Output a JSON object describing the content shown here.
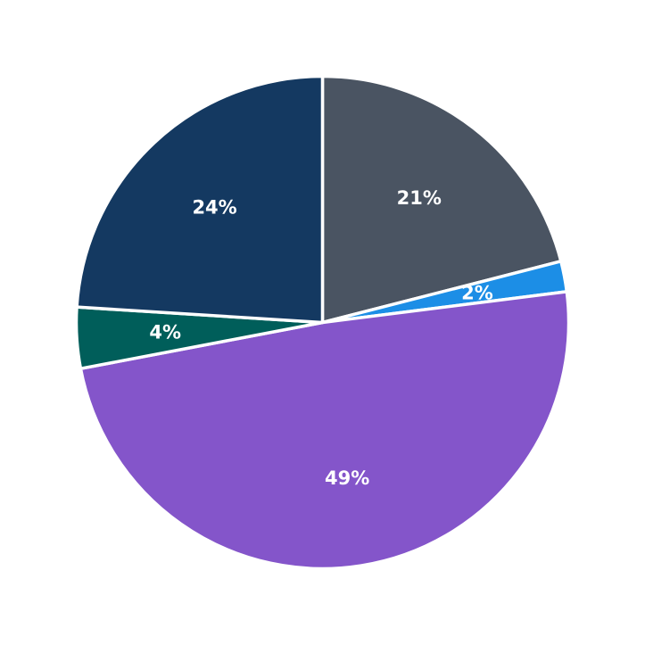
{
  "chart_data": {
    "type": "pie",
    "start": "top",
    "direction": "clockwise",
    "slices": [
      {
        "value": 21,
        "label": "21%",
        "color": "#4a5462"
      },
      {
        "value": 2,
        "label": "2%",
        "color": "#1c8ee6"
      },
      {
        "value": 49,
        "label": "49%",
        "color": "#8455ca"
      },
      {
        "value": 4,
        "label": "4%",
        "color": "#005e5a"
      },
      {
        "value": 24,
        "label": "24%",
        "color": "#143961"
      }
    ],
    "legend": "none"
  }
}
